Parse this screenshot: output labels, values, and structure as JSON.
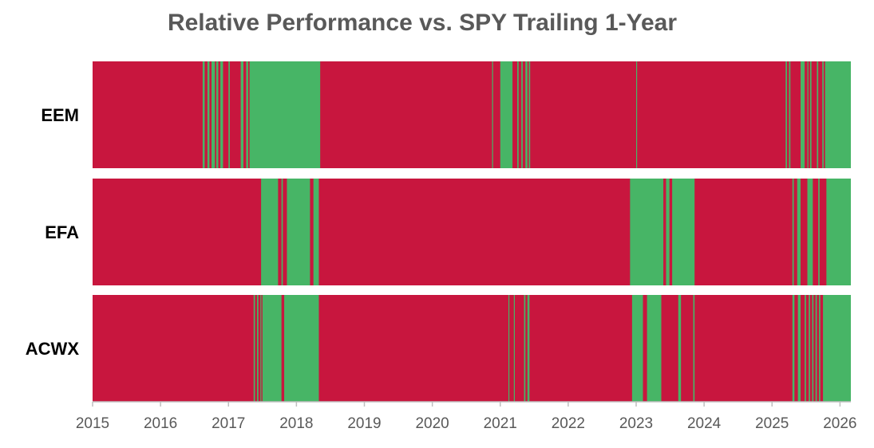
{
  "chart_data": {
    "type": "heatmap",
    "title": "Relative Performance vs. SPY Trailing 1-Year",
    "xlabel": "",
    "ylabel": "",
    "x_range": [
      2015,
      2026.16
    ],
    "x_ticks": [
      "2015",
      "2016",
      "2017",
      "2018",
      "2019",
      "2020",
      "2021",
      "2022",
      "2023",
      "2024",
      "2025",
      "2026"
    ],
    "legend": "none",
    "grid": false,
    "status_colors": {
      "underperform": "#C8163E",
      "outperform": "#47B566"
    },
    "series": [
      {
        "name": "EEM",
        "outperform_periods": [
          [
            2016.62,
            2016.65
          ],
          [
            2016.69,
            2016.72
          ],
          [
            2016.75,
            2016.8
          ],
          [
            2016.82,
            2016.85
          ],
          [
            2016.88,
            2016.92
          ],
          [
            2017.0,
            2017.02
          ],
          [
            2017.18,
            2017.22
          ],
          [
            2017.26,
            2017.29
          ],
          [
            2017.31,
            2018.35
          ],
          [
            2020.88,
            2020.89
          ],
          [
            2021.0,
            2021.18
          ],
          [
            2021.25,
            2021.27
          ],
          [
            2021.31,
            2021.33
          ],
          [
            2021.37,
            2021.4
          ],
          [
            2021.42,
            2021.44
          ],
          [
            2023.0,
            2023.01
          ],
          [
            2025.2,
            2025.22
          ],
          [
            2025.25,
            2025.27
          ],
          [
            2025.42,
            2025.48
          ],
          [
            2025.52,
            2025.53
          ],
          [
            2025.56,
            2025.58
          ],
          [
            2025.66,
            2025.68
          ],
          [
            2025.74,
            2025.76
          ],
          [
            2025.78,
            2026.16
          ]
        ]
      },
      {
        "name": "EFA",
        "outperform_periods": [
          [
            2017.48,
            2017.73
          ],
          [
            2017.78,
            2017.8
          ],
          [
            2017.86,
            2018.2
          ],
          [
            2018.25,
            2018.33
          ],
          [
            2022.91,
            2023.4
          ],
          [
            2023.44,
            2023.49
          ],
          [
            2023.53,
            2023.86
          ],
          [
            2025.3,
            2025.32
          ],
          [
            2025.37,
            2025.42
          ],
          [
            2025.52,
            2025.6
          ],
          [
            2025.68,
            2025.7
          ],
          [
            2025.8,
            2026.16
          ]
        ]
      },
      {
        "name": "ACWX",
        "outperform_periods": [
          [
            2017.37,
            2017.39
          ],
          [
            2017.42,
            2017.44
          ],
          [
            2017.47,
            2017.48
          ],
          [
            2017.5,
            2017.78
          ],
          [
            2017.82,
            2018.33
          ],
          [
            2021.12,
            2021.13
          ],
          [
            2021.2,
            2021.21
          ],
          [
            2021.35,
            2021.37
          ],
          [
            2021.4,
            2021.43
          ],
          [
            2022.94,
            2023.1
          ],
          [
            2023.16,
            2023.37
          ],
          [
            2023.62,
            2023.66
          ],
          [
            2023.84,
            2023.86
          ],
          [
            2025.3,
            2025.33
          ],
          [
            2025.38,
            2025.42
          ],
          [
            2025.48,
            2025.5
          ],
          [
            2025.54,
            2025.56
          ],
          [
            2025.59,
            2025.61
          ],
          [
            2025.64,
            2025.66
          ],
          [
            2025.69,
            2025.71
          ],
          [
            2025.75,
            2026.16
          ]
        ]
      }
    ]
  }
}
